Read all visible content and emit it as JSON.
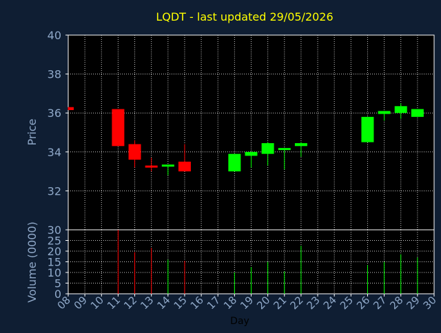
{
  "chart_data": [
    {
      "type": "candlestick",
      "title": "LQDT - last updated 29/05/2026",
      "xlabel": "",
      "ylabel": "Price",
      "ylim": [
        30,
        40
      ],
      "yticks": [
        "30",
        "32",
        "34",
        "36",
        "38",
        "40"
      ],
      "grid": true,
      "colors": {
        "up": "#00ff00",
        "down": "#ff0000"
      },
      "candles": [
        {
          "day": "08",
          "open": 36.3,
          "high": 36.3,
          "low": 36.15,
          "close": 36.15
        },
        {
          "day": "11",
          "open": 36.2,
          "high": 36.2,
          "low": 34.3,
          "close": 34.3
        },
        {
          "day": "12",
          "open": 34.4,
          "high": 34.6,
          "low": 33.2,
          "close": 33.6
        },
        {
          "day": "13",
          "open": 33.3,
          "high": 33.7,
          "low": 33.0,
          "close": 33.2
        },
        {
          "day": "14",
          "open": 33.3,
          "high": 33.35,
          "low": 32.8,
          "close": 33.35
        },
        {
          "day": "15",
          "open": 33.5,
          "high": 34.4,
          "low": 33.0,
          "close": 33.0
        },
        {
          "day": "18",
          "open": 33.0,
          "high": 33.9,
          "low": 33.0,
          "close": 33.9
        },
        {
          "day": "19",
          "open": 33.8,
          "high": 34.0,
          "low": 33.2,
          "close": 34.0
        },
        {
          "day": "20",
          "open": 33.9,
          "high": 34.5,
          "low": 33.3,
          "close": 34.45
        },
        {
          "day": "21",
          "open": 34.15,
          "high": 34.2,
          "low": 33.1,
          "close": 34.2
        },
        {
          "day": "22",
          "open": 34.3,
          "high": 34.5,
          "low": 33.75,
          "close": 34.45
        },
        {
          "day": "26",
          "open": 34.5,
          "high": 35.8,
          "low": 34.5,
          "close": 35.8
        },
        {
          "day": "27",
          "open": 35.95,
          "high": 36.1,
          "low": 35.6,
          "close": 36.1
        },
        {
          "day": "28",
          "open": 36.0,
          "high": 36.5,
          "low": 35.7,
          "close": 36.35
        },
        {
          "day": "29",
          "open": 35.8,
          "high": 36.2,
          "low": 35.8,
          "close": 36.2
        }
      ]
    },
    {
      "type": "bar",
      "xlabel": "Day",
      "ylabel": "Volume (0000)",
      "ylim": [
        0,
        30
      ],
      "yticks": [
        "0",
        "5",
        "10",
        "15",
        "20",
        "25"
      ],
      "categories": [
        "08",
        "09",
        "10",
        "11",
        "12",
        "13",
        "14",
        "15",
        "16",
        "17",
        "18",
        "19",
        "20",
        "21",
        "22",
        "23",
        "24",
        "25",
        "26",
        "27",
        "28",
        "29",
        "30"
      ],
      "bars": [
        {
          "day": "11",
          "value": 30,
          "dir": "down"
        },
        {
          "day": "12",
          "value": 19.5,
          "dir": "down"
        },
        {
          "day": "13",
          "value": 21.5,
          "dir": "down"
        },
        {
          "day": "14",
          "value": 16,
          "dir": "up"
        },
        {
          "day": "15",
          "value": 15.5,
          "dir": "down"
        },
        {
          "day": "18",
          "value": 10,
          "dir": "up"
        },
        {
          "day": "19",
          "value": 12.5,
          "dir": "up"
        },
        {
          "day": "20",
          "value": 15,
          "dir": "up"
        },
        {
          "day": "21",
          "value": 10.5,
          "dir": "up"
        },
        {
          "day": "22",
          "value": 22.5,
          "dir": "up"
        },
        {
          "day": "26",
          "value": 13.5,
          "dir": "up"
        },
        {
          "day": "27",
          "value": 15,
          "dir": "up"
        },
        {
          "day": "28",
          "value": 18.5,
          "dir": "up"
        },
        {
          "day": "29",
          "value": 17,
          "dir": "up"
        }
      ]
    }
  ],
  "style": {
    "background": "#0f1e33",
    "plot_background": "#000000",
    "title_color": "#ffff00",
    "axis_text_color": "#8fa8c8",
    "grid_color": "#d0d0d0"
  }
}
